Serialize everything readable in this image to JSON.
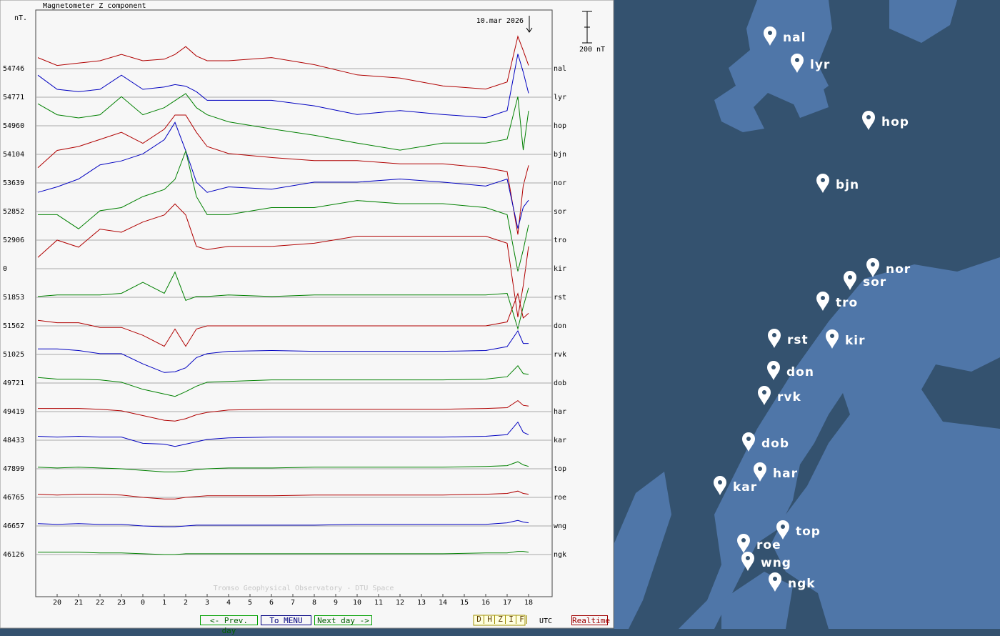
{
  "chart_data": {
    "type": "line",
    "title": "Magnetometer Z component",
    "y_unit": "nT.",
    "date_marker": "10.mar 2026",
    "scale_bar": {
      "value": 200,
      "label": "200 nT"
    },
    "x_label": "UTC",
    "credit": "Tromso Geophysical Observatory - DTU Space",
    "xlim": [
      19,
      43.1
    ],
    "xticks": [
      20,
      21,
      22,
      23,
      {
        "value": 24,
        "label": "0"
      },
      {
        "value": 25,
        "label": "1"
      },
      {
        "value": 26,
        "label": "2"
      },
      {
        "value": 27,
        "label": "3"
      },
      {
        "value": 28,
        "label": "4"
      },
      {
        "value": 29,
        "label": "5"
      },
      {
        "value": 30,
        "label": "6"
      },
      {
        "value": 31,
        "label": "7"
      },
      {
        "value": 32,
        "label": "8"
      },
      {
        "value": 33,
        "label": "9"
      },
      {
        "value": 34,
        "label": "10"
      },
      {
        "value": 35,
        "label": "11"
      },
      {
        "value": 36,
        "label": "12"
      },
      {
        "value": 37,
        "label": "13"
      },
      {
        "value": 38,
        "label": "14"
      },
      {
        "value": 39,
        "label": "15"
      },
      {
        "value": 40,
        "label": "16"
      },
      {
        "value": 41,
        "label": "17"
      },
      {
        "value": 42,
        "label": "18"
      }
    ],
    "x": [
      19.1,
      20,
      21,
      22,
      23,
      24,
      25,
      25.5,
      26,
      26.5,
      27,
      28,
      30,
      32,
      34,
      36,
      38,
      40,
      41,
      41.5,
      41.75,
      42
    ],
    "series": [
      {
        "name": "nal",
        "baseline": 54746,
        "color": "#b00000",
        "values": [
          70,
          20,
          35,
          50,
          90,
          50,
          60,
          90,
          140,
          80,
          50,
          50,
          70,
          25,
          -40,
          -60,
          -110,
          -130,
          -85,
          205,
          115,
          20
        ]
      },
      {
        "name": "lyr",
        "baseline": 54771,
        "color": "#0000c0",
        "values": [
          140,
          50,
          35,
          50,
          140,
          50,
          65,
          80,
          70,
          35,
          -20,
          -20,
          -20,
          -55,
          -110,
          -85,
          -110,
          -130,
          -85,
          275,
          160,
          25
        ]
      },
      {
        "name": "hop",
        "baseline": 54960,
        "color": "#008000",
        "values": [
          140,
          70,
          50,
          70,
          185,
          70,
          115,
          160,
          205,
          115,
          70,
          25,
          -20,
          -60,
          -110,
          -155,
          -110,
          -110,
          -85,
          185,
          -155,
          95
        ]
      },
      {
        "name": "bjn",
        "baseline": 54104,
        "color": "#b00000",
        "values": [
          -85,
          25,
          50,
          95,
          140,
          70,
          160,
          250,
          250,
          140,
          50,
          5,
          -20,
          -40,
          -40,
          -60,
          -60,
          -85,
          -110,
          -510,
          -200,
          -70
        ]
      },
      {
        "name": "nor",
        "baseline": 53639,
        "color": "#0000c0",
        "values": [
          -60,
          -25,
          25,
          115,
          140,
          185,
          275,
          385,
          205,
          5,
          -60,
          -25,
          -40,
          5,
          5,
          25,
          5,
          -20,
          25,
          -290,
          -155,
          -110
        ]
      },
      {
        "name": "sor",
        "baseline": 52852,
        "color": "#008000",
        "values": [
          -20,
          -20,
          -110,
          5,
          25,
          95,
          140,
          205,
          385,
          95,
          -20,
          -20,
          25,
          25,
          70,
          50,
          50,
          25,
          -20,
          -380,
          -245,
          -85
        ]
      },
      {
        "name": "tro",
        "baseline": 52906,
        "color": "#b00000",
        "values": [
          -110,
          0,
          -45,
          70,
          50,
          115,
          160,
          230,
          160,
          -40,
          -60,
          -40,
          -40,
          -20,
          25,
          25,
          25,
          25,
          -20,
          -490,
          -290,
          -40
        ]
      },
      {
        "name": "kir",
        "baseline": 0,
        "color": "#0000c0",
        "values": [
          null,
          null,
          null,
          null,
          null,
          null,
          null,
          null,
          null,
          null,
          null,
          null,
          null,
          null,
          null,
          null,
          null,
          null,
          null,
          null,
          null,
          null
        ]
      },
      {
        "name": "rst",
        "baseline": 51853,
        "color": "#008000",
        "values": [
          5,
          15,
          15,
          15,
          25,
          95,
          25,
          160,
          -20,
          5,
          5,
          15,
          5,
          15,
          15,
          15,
          15,
          15,
          25,
          -200,
          -60,
          60
        ]
      },
      {
        "name": "don",
        "baseline": 51562,
        "color": "#b00000",
        "values": [
          35,
          20,
          20,
          -10,
          -10,
          -60,
          -130,
          -20,
          -130,
          -20,
          0,
          0,
          0,
          0,
          0,
          0,
          0,
          0,
          25,
          205,
          50,
          80
        ]
      },
      {
        "name": "rvk",
        "baseline": 51025,
        "color": "#0000c0",
        "values": [
          35,
          35,
          25,
          5,
          5,
          -60,
          -115,
          -110,
          -85,
          -20,
          5,
          20,
          25,
          20,
          20,
          20,
          20,
          25,
          50,
          150,
          70,
          70
        ]
      },
      {
        "name": "dob",
        "baseline": 49721,
        "color": "#008000",
        "values": [
          35,
          25,
          25,
          20,
          5,
          -40,
          -70,
          -85,
          -55,
          -20,
          5,
          10,
          20,
          20,
          20,
          20,
          20,
          25,
          40,
          110,
          60,
          55
        ]
      },
      {
        "name": "har",
        "baseline": 49419,
        "color": "#b00000",
        "values": [
          20,
          20,
          20,
          15,
          5,
          -25,
          -55,
          -60,
          -45,
          -20,
          -5,
          10,
          15,
          15,
          15,
          15,
          15,
          20,
          25,
          70,
          40,
          35
        ]
      },
      {
        "name": "kar",
        "baseline": 48433,
        "color": "#0000c0",
        "values": [
          25,
          20,
          25,
          20,
          20,
          -20,
          -25,
          -40,
          -25,
          -10,
          5,
          15,
          20,
          20,
          20,
          20,
          20,
          25,
          35,
          115,
          50,
          35
        ]
      },
      {
        "name": "top",
        "baseline": 47899,
        "color": "#008000",
        "values": [
          10,
          5,
          10,
          5,
          0,
          -10,
          -20,
          -20,
          -15,
          -5,
          0,
          5,
          5,
          10,
          10,
          10,
          10,
          15,
          20,
          45,
          25,
          15
        ]
      },
      {
        "name": "roe",
        "baseline": 46765,
        "color": "#b00000",
        "values": [
          20,
          15,
          20,
          20,
          15,
          0,
          -10,
          -10,
          0,
          5,
          10,
          10,
          10,
          15,
          15,
          15,
          15,
          20,
          25,
          40,
          25,
          20
        ]
      },
      {
        "name": "wng",
        "baseline": 46657,
        "color": "#0000c0",
        "values": [
          15,
          10,
          15,
          10,
          10,
          0,
          -5,
          -5,
          0,
          5,
          5,
          5,
          5,
          5,
          10,
          10,
          10,
          10,
          20,
          35,
          25,
          20
        ]
      },
      {
        "name": "ngk",
        "baseline": 46126,
        "color": "#008000",
        "values": [
          15,
          15,
          15,
          10,
          10,
          5,
          0,
          0,
          5,
          5,
          5,
          5,
          5,
          5,
          5,
          5,
          5,
          10,
          10,
          20,
          20,
          15
        ]
      }
    ]
  },
  "nav": {
    "prev": "<- Prev. day",
    "menu": "To MENU",
    "next": "Next day ->",
    "components": [
      "D",
      "H",
      "Z",
      "I",
      "F"
    ],
    "realtime": "Realtime"
  }
}
